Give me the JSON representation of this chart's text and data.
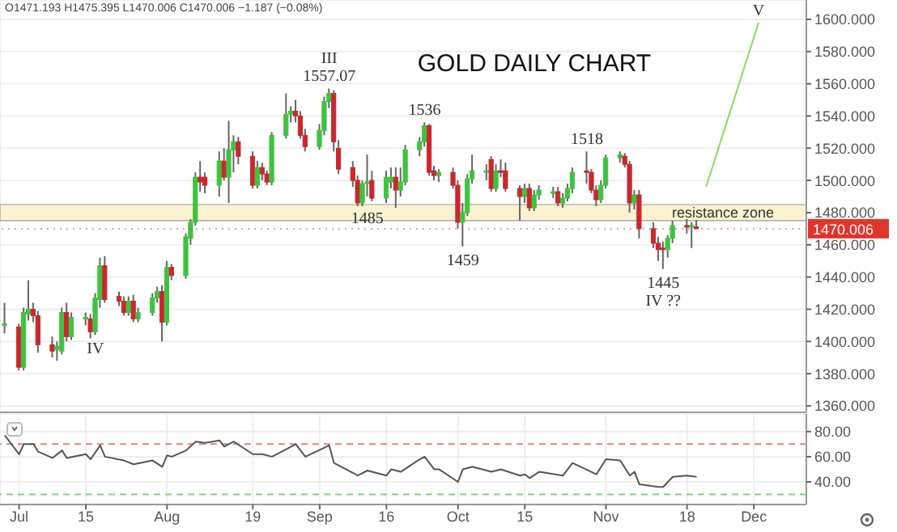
{
  "chart_data": [
    {
      "type": "candlestick",
      "title": "GOLD DAILY CHART",
      "subtitle": "O1471.193 H1475.395 L1470.006 C1470.006 −1.187 (−0.08%)",
      "x": [
        "--06-28",
        "--07-01",
        "--07-02",
        "--07-03",
        "--07-04",
        "--07-05",
        "--07-08",
        "--07-09",
        "--07-10",
        "--07-11",
        "--07-12",
        "--07-15",
        "--07-16",
        "--07-17",
        "--07-18",
        "--07-19",
        "--07-22",
        "--07-23",
        "--07-24",
        "--07-25",
        "--07-26",
        "--07-29",
        "--07-30",
        "--07-31",
        "--08-01",
        "--08-02",
        "--08-05",
        "--08-06",
        "--08-07",
        "--08-08",
        "--08-09",
        "--08-12",
        "--08-13",
        "--08-14",
        "--08-15",
        "--08-16",
        "--08-19",
        "--08-20",
        "--08-21",
        "--08-22",
        "--08-23",
        "--08-26",
        "--08-27",
        "--08-28",
        "--08-29",
        "--08-30",
        "--09-02",
        "--09-03",
        "--09-04",
        "--09-05",
        "--09-06",
        "--09-09",
        "--09-10",
        "--09-11",
        "--09-12",
        "--09-13",
        "--09-16",
        "--09-17",
        "--09-18",
        "--09-19",
        "--09-20",
        "--09-23",
        "--09-24",
        "--09-25",
        "--09-26",
        "--09-27",
        "--09-30",
        "--10-01",
        "--10-02",
        "--10-03",
        "--10-04",
        "--10-07",
        "--10-08",
        "--10-09",
        "--10-10",
        "--10-11",
        "--10-14",
        "--10-15",
        "--10-16",
        "--10-17",
        "--10-18",
        "--10-21",
        "--10-22",
        "--10-23",
        "--10-24",
        "--10-25",
        "--10-28",
        "--10-29",
        "--10-30",
        "--10-31",
        "--11-01",
        "--11-04",
        "--11-05",
        "--11-06",
        "--11-07",
        "--11-08",
        "--11-11",
        "--11-12",
        "--11-13",
        "--11-14",
        "--11-15",
        "--11-18",
        "--11-19",
        "--11-20"
      ],
      "ohlc": [
        [
          1410,
          1424,
          1405,
          1411
        ],
        [
          1409,
          1411,
          1382,
          1384
        ],
        [
          1384,
          1421,
          1382,
          1418
        ],
        [
          1417,
          1438,
          1413,
          1420
        ],
        [
          1420,
          1424,
          1412,
          1416
        ],
        [
          1416,
          1419,
          1393,
          1398
        ],
        [
          1398,
          1403,
          1390,
          1394
        ],
        [
          1395,
          1400,
          1388,
          1397
        ],
        [
          1394,
          1421,
          1392,
          1418
        ],
        [
          1418,
          1424,
          1400,
          1403
        ],
        [
          1403,
          1418,
          1401,
          1415
        ],
        [
          1414,
          1418,
          1410,
          1415
        ],
        [
          1414,
          1417,
          1402,
          1406
        ],
        [
          1406,
          1430,
          1404,
          1427
        ],
        [
          1426,
          1452,
          1421,
          1447
        ],
        [
          1447,
          1453,
          1424,
          1426
        ],
        [
          1428,
          1431,
          1422,
          1425
        ],
        [
          1425,
          1428,
          1416,
          1418
        ],
        [
          1418,
          1428,
          1416,
          1425
        ],
        [
          1425,
          1429,
          1412,
          1414
        ],
        [
          1414,
          1421,
          1412,
          1418
        ],
        [
          1418,
          1430,
          1416,
          1427
        ],
        [
          1427,
          1434,
          1424,
          1431
        ],
        [
          1431,
          1435,
          1400,
          1412
        ],
        [
          1412,
          1450,
          1410,
          1446
        ],
        [
          1446,
          1448,
          1438,
          1441
        ],
        [
          1441,
          1467,
          1439,
          1465
        ],
        [
          1464,
          1476,
          1460,
          1474
        ],
        [
          1474,
          1505,
          1472,
          1502
        ],
        [
          1502,
          1512,
          1493,
          1499
        ],
        [
          1502,
          1505,
          1492,
          1497
        ],
        [
          1497,
          1518,
          1490,
          1512
        ],
        [
          1512,
          1520,
          1500,
          1502
        ],
        [
          1502,
          1537,
          1486,
          1519
        ],
        [
          1519,
          1528,
          1505,
          1524
        ],
        [
          1524,
          1527,
          1510,
          1515
        ],
        [
          1515,
          1518,
          1495,
          1497
        ],
        [
          1497,
          1512,
          1495,
          1508
        ],
        [
          1508,
          1511,
          1500,
          1504
        ],
        [
          1504,
          1506,
          1497,
          1499
        ],
        [
          1499,
          1530,
          1497,
          1528
        ],
        [
          1528,
          1554,
          1526,
          1541
        ],
        [
          1541,
          1546,
          1536,
          1543
        ],
        [
          1543,
          1550,
          1536,
          1540
        ],
        [
          1540,
          1543,
          1526,
          1528
        ],
        [
          1528,
          1532,
          1518,
          1521
        ],
        [
          1521,
          1535,
          1519,
          1531
        ],
        [
          1531,
          1552,
          1528,
          1549
        ],
        [
          1549,
          1557.07,
          1545,
          1554
        ],
        [
          1554,
          1556,
          1518,
          1524
        ],
        [
          1520,
          1525,
          1504,
          1507
        ],
        [
          1508,
          1512,
          1496,
          1500
        ],
        [
          1500,
          1503,
          1484,
          1486
        ],
        [
          1486,
          1500,
          1484,
          1498
        ],
        [
          1498,
          1516,
          1490,
          1499
        ],
        [
          1500,
          1506,
          1487,
          1489
        ],
        [
          1489,
          1506,
          1486,
          1502
        ],
        [
          1499,
          1508,
          1495,
          1502
        ],
        [
          1502,
          1508,
          1483,
          1494
        ],
        [
          1494,
          1508,
          1490,
          1499
        ],
        [
          1499,
          1522,
          1497,
          1519
        ],
        [
          1519,
          1527,
          1515,
          1524
        ],
        [
          1524,
          1536,
          1521,
          1534
        ],
        [
          1534,
          1535,
          1503,
          1505
        ],
        [
          1506,
          1509,
          1500,
          1503
        ],
        [
          1503,
          1507,
          1499,
          1505
        ],
        [
          1505,
          1508,
          1495,
          1497
        ],
        [
          1497,
          1500,
          1470,
          1474
        ],
        [
          1474,
          1486,
          1459,
          1480
        ],
        [
          1480,
          1504,
          1478,
          1501
        ],
        [
          1501,
          1516,
          1498,
          1506
        ],
        [
          1505,
          1510,
          1500,
          1506
        ],
        [
          1513,
          1515,
          1493,
          1495
        ],
        [
          1495,
          1510,
          1493,
          1506
        ],
        [
          1506,
          1513,
          1502,
          1505
        ],
        [
          1506,
          1511,
          1493,
          1495
        ],
        [
          1495,
          1497,
          1475,
          1490
        ],
        [
          1490,
          1498,
          1486,
          1495
        ],
        [
          1495,
          1498,
          1481,
          1483
        ],
        [
          1483,
          1494,
          1481,
          1491
        ],
        [
          1491,
          1497,
          1488,
          1494
        ],
        [
          1493,
          1496,
          1489,
          1493
        ],
        [
          1493,
          1496,
          1484,
          1486
        ],
        [
          1486,
          1492,
          1483,
          1489
        ],
        [
          1489,
          1498,
          1487,
          1495
        ],
        [
          1495,
          1508,
          1492,
          1505
        ],
        [
          1506,
          1518,
          1498,
          1505
        ],
        [
          1505,
          1507,
          1492,
          1494
        ],
        [
          1494,
          1497,
          1484,
          1488
        ],
        [
          1488,
          1500,
          1486,
          1497
        ],
        [
          1497,
          1516,
          1495,
          1514
        ],
        [
          1514,
          1518,
          1511,
          1516
        ],
        [
          1515,
          1517,
          1508,
          1510
        ],
        [
          1510,
          1512,
          1480,
          1486
        ],
        [
          1486,
          1494,
          1482,
          1491
        ],
        [
          1491,
          1494,
          1464,
          1470
        ],
        [
          1470,
          1474,
          1458,
          1461
        ],
        [
          1461,
          1465,
          1450,
          1457
        ],
        [
          1458,
          1462,
          1445,
          1457
        ],
        [
          1457,
          1466,
          1452,
          1464
        ],
        [
          1464,
          1475,
          1461,
          1472
        ],
        [
          1472,
          1476,
          1467,
          1471
        ],
        [
          1471,
          1474,
          1458,
          1472
        ],
        [
          1471.193,
          1475.395,
          1470.006,
          1470.006
        ]
      ],
      "colors": [
        "#3fc33f",
        "#c8282d",
        "#3fc33f",
        "#3fc33f",
        "#c8282d",
        "#c8282d",
        "#c8282d",
        "#3fc33f",
        "#3fc33f",
        "#c8282d",
        "#3fc33f",
        "#3fc33f",
        "#c8282d",
        "#3fc33f",
        "#3fc33f",
        "#c8282d",
        "#c8282d",
        "#c8282d",
        "#3fc33f",
        "#c8282d",
        "#3fc33f",
        "#3fc33f",
        "#3fc33f",
        "#c8282d",
        "#3fc33f",
        "#c8282d",
        "#3fc33f",
        "#3fc33f",
        "#3fc33f",
        "#c8282d",
        "#c8282d",
        "#3fc33f",
        "#c8282d",
        "#3fc33f",
        "#3fc33f",
        "#c8282d",
        "#c8282d",
        "#3fc33f",
        "#c8282d",
        "#c8282d",
        "#3fc33f",
        "#3fc33f",
        "#3fc33f",
        "#c8282d",
        "#c8282d",
        "#c8282d",
        "#3fc33f",
        "#3fc33f",
        "#3fc33f",
        "#c8282d",
        "#c8282d",
        "#c8282d",
        "#c8282d",
        "#3fc33f",
        "#3fc33f",
        "#c8282d",
        "#3fc33f",
        "#3fc33f",
        "#c8282d",
        "#3fc33f",
        "#3fc33f",
        "#3fc33f",
        "#3fc33f",
        "#c8282d",
        "#c8282d",
        "#3fc33f",
        "#c8282d",
        "#c8282d",
        "#3fc33f",
        "#3fc33f",
        "#3fc33f",
        "#3fc33f",
        "#c8282d",
        "#3fc33f",
        "#c8282d",
        "#c8282d",
        "#c8282d",
        "#3fc33f",
        "#c8282d",
        "#3fc33f",
        "#3fc33f",
        "#3fc33f",
        "#c8282d",
        "#3fc33f",
        "#3fc33f",
        "#3fc33f",
        "#c8282d",
        "#c8282d",
        "#c8282d",
        "#3fc33f",
        "#3fc33f",
        "#3fc33f",
        "#c8282d",
        "#c8282d",
        "#3fc33f",
        "#c8282d",
        "#c8282d",
        "#c8282d",
        "#c8282d",
        "#3fc33f",
        "#3fc33f",
        "#c8282d",
        "#3fc33f",
        "#c8282d"
      ],
      "series": [
        {
          "type": "line",
          "x": [
            "--11-22",
            "--12-03"
          ],
          "values": [
            1496,
            1598
          ],
          "color": "#8fd966"
        }
      ],
      "bands": [
        {
          "axis": "y",
          "from": 1475,
          "to": 1485,
          "label": "resistance zone",
          "color": "#fbf3d0"
        }
      ],
      "ref_lines": [
        {
          "axis": "y",
          "value": 1470.006,
          "label": "1470.006",
          "color": "#e0352b",
          "line_style": "dotted"
        }
      ],
      "annotations": [
        {
          "text": "1557.07",
          "x": "--09-04",
          "y": 1557.07
        },
        {
          "text": "III",
          "x": "--09-04",
          "y": 1557.07
        },
        {
          "text": "1536",
          "x": "--09-24",
          "y": 1536
        },
        {
          "text": "1518",
          "x": "--10-28",
          "y": 1518
        },
        {
          "text": "1485",
          "x": "--09-12",
          "y": 1485
        },
        {
          "text": "1459",
          "x": "--10-02",
          "y": 1459
        },
        {
          "text": "1445",
          "x": "--11-13",
          "y": 1445
        },
        {
          "text": "IV ??",
          "x": "--11-13",
          "y": 1445
        },
        {
          "text": "IV",
          "x": "--07-17",
          "y": 1404
        },
        {
          "text": "V",
          "x": "--12-03",
          "y": 1598
        }
      ],
      "xlim": [
        "--06-27",
        "--12-13"
      ],
      "xticks": [
        {
          "value": "--07-01",
          "label": "Jul"
        },
        {
          "value": "--07-15",
          "label": "15"
        },
        {
          "value": "--08-01",
          "label": "Aug"
        },
        {
          "value": "--08-19",
          "label": "19"
        },
        {
          "value": "--09-02",
          "label": "Sep"
        },
        {
          "value": "--09-16",
          "label": "16"
        },
        {
          "value": "--10-01",
          "label": "Oct"
        },
        {
          "value": "--10-15",
          "label": "15"
        },
        {
          "value": "--11-01",
          "label": "Nov"
        },
        {
          "value": "--11-18",
          "label": "18"
        },
        {
          "value": "--12-02",
          "label": "Dec"
        }
      ],
      "ylim": [
        1356,
        1612
      ],
      "yticks": [
        {
          "value": 1360,
          "label": "1360.000"
        },
        {
          "value": 1380,
          "label": "1380.000"
        },
        {
          "value": 1400,
          "label": "1400.000"
        },
        {
          "value": 1420,
          "label": "1420.000"
        },
        {
          "value": 1440,
          "label": "1440.000"
        },
        {
          "value": 1460,
          "label": "1460.000"
        },
        {
          "value": 1480,
          "label": "1480.000"
        },
        {
          "value": 1500,
          "label": "1500.000"
        },
        {
          "value": 1520,
          "label": "1520.000"
        },
        {
          "value": 1540,
          "label": "1540.000"
        },
        {
          "value": 1560,
          "label": "1560.000"
        },
        {
          "value": 1580,
          "label": "1580.000"
        },
        {
          "value": 1600,
          "label": "1600.000"
        }
      ],
      "grid": true,
      "tick_labels": "y"
    },
    {
      "type": "line",
      "series": [
        {
          "x": [
            "--06-28",
            "--07-01",
            "--07-02",
            "--07-04",
            "--07-05",
            "--07-08",
            "--07-10",
            "--07-11",
            "--07-15",
            "--07-16",
            "--07-18",
            "--07-19",
            "--07-23",
            "--07-25",
            "--07-29",
            "--07-31",
            "--08-01",
            "--08-02",
            "--08-05",
            "--08-07",
            "--08-09",
            "--08-12",
            "--08-13",
            "--08-15",
            "--08-19",
            "--08-21",
            "--08-23",
            "--08-26",
            "--08-28",
            "--08-30",
            "--09-04",
            "--09-05",
            "--09-10",
            "--09-12",
            "--09-16",
            "--09-17",
            "--09-19",
            "--09-23",
            "--09-24",
            "--09-26",
            "--09-27",
            "--10-01",
            "--10-02",
            "--10-04",
            "--10-08",
            "--10-10",
            "--10-14",
            "--10-15",
            "--10-16",
            "--10-18",
            "--10-23",
            "--10-25",
            "--10-30",
            "--11-01",
            "--11-04",
            "--11-06",
            "--11-07",
            "--11-08",
            "--11-12",
            "--11-13",
            "--11-15",
            "--11-18",
            "--11-20"
          ],
          "values": [
            77,
            62,
            70,
            70,
            64,
            59,
            65,
            59,
            62,
            58,
            69,
            60,
            57,
            54,
            57,
            52,
            61,
            60,
            65,
            72,
            71,
            73,
            68,
            72,
            62,
            62,
            60,
            66,
            70,
            60,
            69,
            55,
            45,
            49,
            45,
            50,
            48,
            58,
            60,
            50,
            50,
            40,
            50,
            52,
            48,
            50,
            45,
            46,
            43,
            48,
            45,
            55,
            46,
            58,
            57,
            45,
            48,
            38,
            36,
            36,
            44,
            45,
            44
          ],
          "color": "#555555"
        }
      ],
      "ref_lines": [
        {
          "axis": "y",
          "value": 70,
          "color": "#ef7c7c",
          "line_style": "dashed"
        },
        {
          "axis": "y",
          "value": 30,
          "color": "#7ed67e",
          "line_style": "dashed"
        }
      ],
      "xlim": [
        "--06-27",
        "--12-13"
      ],
      "xticks": [
        {
          "value": "--07-01",
          "label": "Jul"
        },
        {
          "value": "--07-15",
          "label": "15"
        },
        {
          "value": "--08-01",
          "label": "Aug"
        },
        {
          "value": "--08-19",
          "label": "19"
        },
        {
          "value": "--09-02",
          "label": "Sep"
        },
        {
          "value": "--09-16",
          "label": "16"
        },
        {
          "value": "--10-01",
          "label": "Oct"
        },
        {
          "value": "--10-15",
          "label": "15"
        },
        {
          "value": "--11-01",
          "label": "Nov"
        },
        {
          "value": "--11-18",
          "label": "18"
        },
        {
          "value": "--12-02",
          "label": "Dec"
        }
      ],
      "ylim": [
        22,
        94
      ],
      "yticks": [
        {
          "value": 40,
          "label": "40.00"
        },
        {
          "value": 60,
          "label": "60.00"
        },
        {
          "value": 80,
          "label": "80.00"
        }
      ],
      "grid": true,
      "marker": "none",
      "line_style": "solid"
    }
  ]
}
